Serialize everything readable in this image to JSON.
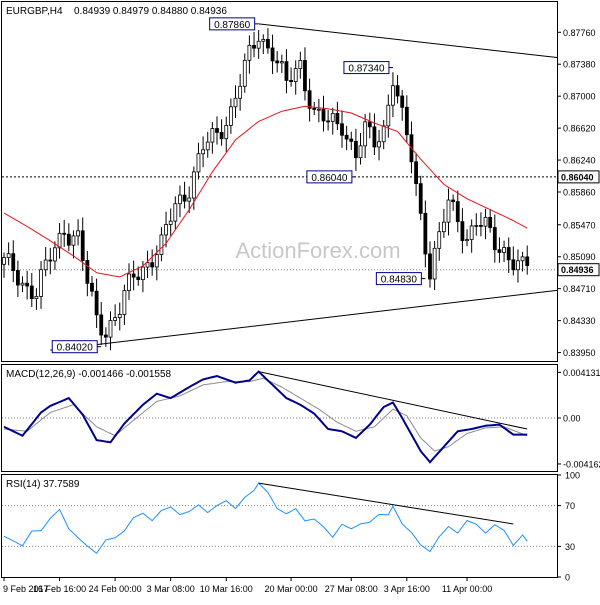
{
  "header": {
    "instrument": "EURGBP,H4",
    "ohlc": "0.84939 0.84979 0.84880 0.84936"
  },
  "watermark": "ActionForex.com",
  "chart_data": [
    {
      "type": "candlestick",
      "name": "price",
      "ylim": [
        0.8385,
        0.8812
      ],
      "y_ticks": [
        "0.87760",
        "0.87380",
        "0.87000",
        "0.86620",
        "0.86240",
        "0.85860",
        "0.85470",
        "0.85090",
        "0.84710",
        "0.84330",
        "0.83950"
      ],
      "y_tick_values": [
        0.8776,
        0.8738,
        0.87,
        0.8662,
        0.8624,
        0.8586,
        0.8547,
        0.8509,
        0.8471,
        0.8433,
        0.8395
      ],
      "current_price": {
        "label": "0.84936",
        "value": 0.84936
      },
      "horizontal_level": {
        "label": "0.86040",
        "value": 0.8604
      },
      "annotations": [
        {
          "label": "0.87860",
          "value": 0.8786,
          "bar": 55
        },
        {
          "label": "0.87340",
          "value": 0.8734,
          "bar": 84
        },
        {
          "label": "0.86040",
          "value": 0.8604,
          "bar": 76
        },
        {
          "label": "0.84830",
          "value": 0.8483,
          "bar": 91
        },
        {
          "label": "0.84020",
          "value": 0.8402,
          "bar": 21
        }
      ],
      "trendlines": [
        {
          "from": {
            "bar": 55,
            "value": 0.8786
          },
          "to": {
            "bar": 120,
            "value": 0.8746
          }
        },
        {
          "from": {
            "bar": 10,
            "value": 0.8398
          },
          "to": {
            "bar": 120,
            "value": 0.8469
          }
        }
      ],
      "close_path": [
        [
          0,
          0.85
        ],
        [
          4,
          0.848
        ],
        [
          7,
          0.8468
        ],
        [
          10,
          0.8505
        ],
        [
          13,
          0.8545
        ],
        [
          16,
          0.853
        ],
        [
          18,
          0.8475
        ],
        [
          20,
          0.8435
        ],
        [
          22,
          0.8425
        ],
        [
          25,
          0.8445
        ],
        [
          28,
          0.8485
        ],
        [
          31,
          0.8505
        ],
        [
          34,
          0.852
        ],
        [
          37,
          0.857
        ],
        [
          40,
          0.8595
        ],
        [
          43,
          0.8635
        ],
        [
          46,
          0.8655
        ],
        [
          49,
          0.8685
        ],
        [
          52,
          0.873
        ],
        [
          55,
          0.8775
        ],
        [
          58,
          0.8755
        ],
        [
          61,
          0.871
        ],
        [
          64,
          0.874
        ],
        [
          67,
          0.868
        ],
        [
          70,
          0.8665
        ],
        [
          73,
          0.867
        ],
        [
          76,
          0.863
        ],
        [
          78,
          0.8655
        ],
        [
          80,
          0.8645
        ],
        [
          82,
          0.8665
        ],
        [
          84,
          0.8725
        ],
        [
          86,
          0.867
        ],
        [
          88,
          0.8625
        ],
        [
          90,
          0.856
        ],
        [
          92,
          0.8495
        ],
        [
          94,
          0.853
        ],
        [
          96,
          0.857
        ],
        [
          98,
          0.8555
        ],
        [
          100,
          0.8535
        ],
        [
          102,
          0.855
        ],
        [
          104,
          0.854
        ],
        [
          106,
          0.8525
        ],
        [
          108,
          0.852
        ],
        [
          110,
          0.8505
        ],
        [
          112,
          0.8492
        ],
        [
          113,
          0.8494
        ]
      ],
      "moving_average": [
        [
          0,
          0.8561
        ],
        [
          5,
          0.8545
        ],
        [
          10,
          0.8528
        ],
        [
          15,
          0.851
        ],
        [
          20,
          0.849
        ],
        [
          25,
          0.8485
        ],
        [
          30,
          0.8498
        ],
        [
          35,
          0.8525
        ],
        [
          40,
          0.8565
        ],
        [
          45,
          0.861
        ],
        [
          50,
          0.8648
        ],
        [
          55,
          0.867
        ],
        [
          60,
          0.8682
        ],
        [
          65,
          0.8688
        ],
        [
          70,
          0.8685
        ],
        [
          75,
          0.868
        ],
        [
          80,
          0.8668
        ],
        [
          85,
          0.8658
        ],
        [
          90,
          0.8625
        ],
        [
          95,
          0.8595
        ],
        [
          100,
          0.8578
        ],
        [
          105,
          0.8565
        ],
        [
          110,
          0.8552
        ],
        [
          113,
          0.8543
        ]
      ]
    },
    {
      "type": "line",
      "name": "macd",
      "label": "MACD(12,26,9) -0.001466 -0.001558",
      "ylim": [
        -0.0048,
        0.0048
      ],
      "y_ticks": [
        "0.004131",
        "0.00",
        "-0.004162"
      ],
      "y_tick_values": [
        0.004131,
        0.0,
        -0.004162
      ],
      "trendline": {
        "from": {
          "bar": 55,
          "value": 0.0042
        },
        "to": {
          "bar": 113,
          "value": -0.001
        }
      },
      "main": [
        [
          0,
          -0.0008
        ],
        [
          4,
          -0.0016
        ],
        [
          8,
          0.0005
        ],
        [
          10,
          0.0011
        ],
        [
          14,
          0.0018
        ],
        [
          17,
          0.0003
        ],
        [
          20,
          -0.002
        ],
        [
          23,
          -0.0022
        ],
        [
          26,
          -0.0005
        ],
        [
          30,
          0.0012
        ],
        [
          33,
          0.0022
        ],
        [
          36,
          0.0018
        ],
        [
          40,
          0.0028
        ],
        [
          43,
          0.0035
        ],
        [
          46,
          0.0038
        ],
        [
          50,
          0.0032
        ],
        [
          53,
          0.0034
        ],
        [
          55,
          0.0042
        ],
        [
          58,
          0.003
        ],
        [
          61,
          0.0018
        ],
        [
          64,
          0.0012
        ],
        [
          67,
          0.0004
        ],
        [
          70,
          -0.001
        ],
        [
          73,
          -0.0012
        ],
        [
          76,
          -0.0018
        ],
        [
          79,
          -0.0006
        ],
        [
          82,
          0.001
        ],
        [
          84,
          0.0014
        ],
        [
          86,
          0.0
        ],
        [
          88,
          -0.0015
        ],
        [
          90,
          -0.003
        ],
        [
          92,
          -0.004
        ],
        [
          95,
          -0.0026
        ],
        [
          98,
          -0.0012
        ],
        [
          101,
          -0.001
        ],
        [
          104,
          -0.0007
        ],
        [
          107,
          -0.0006
        ],
        [
          110,
          -0.0015
        ],
        [
          113,
          -0.0015
        ]
      ],
      "signal": [
        [
          0,
          -0.001
        ],
        [
          5,
          -0.0012
        ],
        [
          10,
          0.0005
        ],
        [
          15,
          0.0012
        ],
        [
          20,
          -0.0008
        ],
        [
          24,
          -0.0016
        ],
        [
          28,
          -0.0002
        ],
        [
          33,
          0.0015
        ],
        [
          38,
          0.002
        ],
        [
          43,
          0.003
        ],
        [
          48,
          0.0033
        ],
        [
          53,
          0.0033
        ],
        [
          56,
          0.0036
        ],
        [
          60,
          0.0028
        ],
        [
          64,
          0.0018
        ],
        [
          68,
          0.0008
        ],
        [
          72,
          -0.0004
        ],
        [
          76,
          -0.0012
        ],
        [
          80,
          -0.0008
        ],
        [
          84,
          0.0008
        ],
        [
          87,
          0.0002
        ],
        [
          90,
          -0.0018
        ],
        [
          93,
          -0.003
        ],
        [
          96,
          -0.0026
        ],
        [
          100,
          -0.0014
        ],
        [
          104,
          -0.0009
        ],
        [
          108,
          -0.0008
        ],
        [
          113,
          -0.0016
        ]
      ]
    },
    {
      "type": "line",
      "name": "rsi",
      "label": "RSI(14) 37.7589",
      "ylim": [
        0,
        100
      ],
      "y_ticks": [
        "100",
        "70",
        "30",
        "0"
      ],
      "y_tick_values": [
        100,
        70,
        30,
        0
      ],
      "trendline": {
        "from": {
          "bar": 55,
          "value": 92
        },
        "to": {
          "bar": 110,
          "value": 52
        }
      },
      "values": [
        [
          0,
          40
        ],
        [
          2,
          38
        ],
        [
          4,
          28
        ],
        [
          6,
          45
        ],
        [
          8,
          48
        ],
        [
          10,
          55
        ],
        [
          12,
          66
        ],
        [
          14,
          50
        ],
        [
          16,
          36
        ],
        [
          18,
          30
        ],
        [
          20,
          26
        ],
        [
          22,
          34
        ],
        [
          24,
          38
        ],
        [
          26,
          48
        ],
        [
          28,
          56
        ],
        [
          30,
          62
        ],
        [
          32,
          58
        ],
        [
          34,
          63
        ],
        [
          36,
          68
        ],
        [
          38,
          64
        ],
        [
          40,
          62
        ],
        [
          42,
          70
        ],
        [
          44,
          66
        ],
        [
          46,
          68
        ],
        [
          48,
          74
        ],
        [
          50,
          70
        ],
        [
          52,
          76
        ],
        [
          54,
          84
        ],
        [
          55,
          90
        ],
        [
          57,
          82
        ],
        [
          59,
          70
        ],
        [
          61,
          60
        ],
        [
          63,
          66
        ],
        [
          65,
          58
        ],
        [
          67,
          55
        ],
        [
          69,
          48
        ],
        [
          71,
          42
        ],
        [
          73,
          50
        ],
        [
          75,
          46
        ],
        [
          77,
          55
        ],
        [
          79,
          52
        ],
        [
          81,
          60
        ],
        [
          83,
          64
        ],
        [
          84,
          68
        ],
        [
          86,
          55
        ],
        [
          88,
          42
        ],
        [
          90,
          30
        ],
        [
          92,
          28
        ],
        [
          94,
          38
        ],
        [
          96,
          48
        ],
        [
          98,
          46
        ],
        [
          100,
          54
        ],
        [
          102,
          50
        ],
        [
          104,
          46
        ],
        [
          106,
          50
        ],
        [
          108,
          44
        ],
        [
          110,
          34
        ],
        [
          112,
          40
        ],
        [
          113,
          38
        ]
      ]
    }
  ],
  "x_axis": {
    "ticks": [
      {
        "label": "9 Feb 2017",
        "bar": 0
      },
      {
        "label": "16 Feb 16:00",
        "bar": 12
      },
      {
        "label": "24 Feb 00:00",
        "bar": 24
      },
      {
        "label": "3 Mar 08:00",
        "bar": 36
      },
      {
        "label": "10 Mar 16:00",
        "bar": 48
      },
      {
        "label": "20 Mar 00:00",
        "bar": 62
      },
      {
        "label": "27 Mar 08:00",
        "bar": 75
      },
      {
        "label": "3 Apr 16:00",
        "bar": 87
      },
      {
        "label": "11 Apr 00:00",
        "bar": 100
      }
    ],
    "bar_count": 120
  },
  "colors": {
    "candle": "#000000",
    "moving_average": "#e8141c",
    "macd_main": "#00008b",
    "macd_signal": "#8c8c8c",
    "rsi": "#1e90ff",
    "trendline": "#000000",
    "annotation_border": "#00008b",
    "watermark": "#c8c8c8"
  }
}
